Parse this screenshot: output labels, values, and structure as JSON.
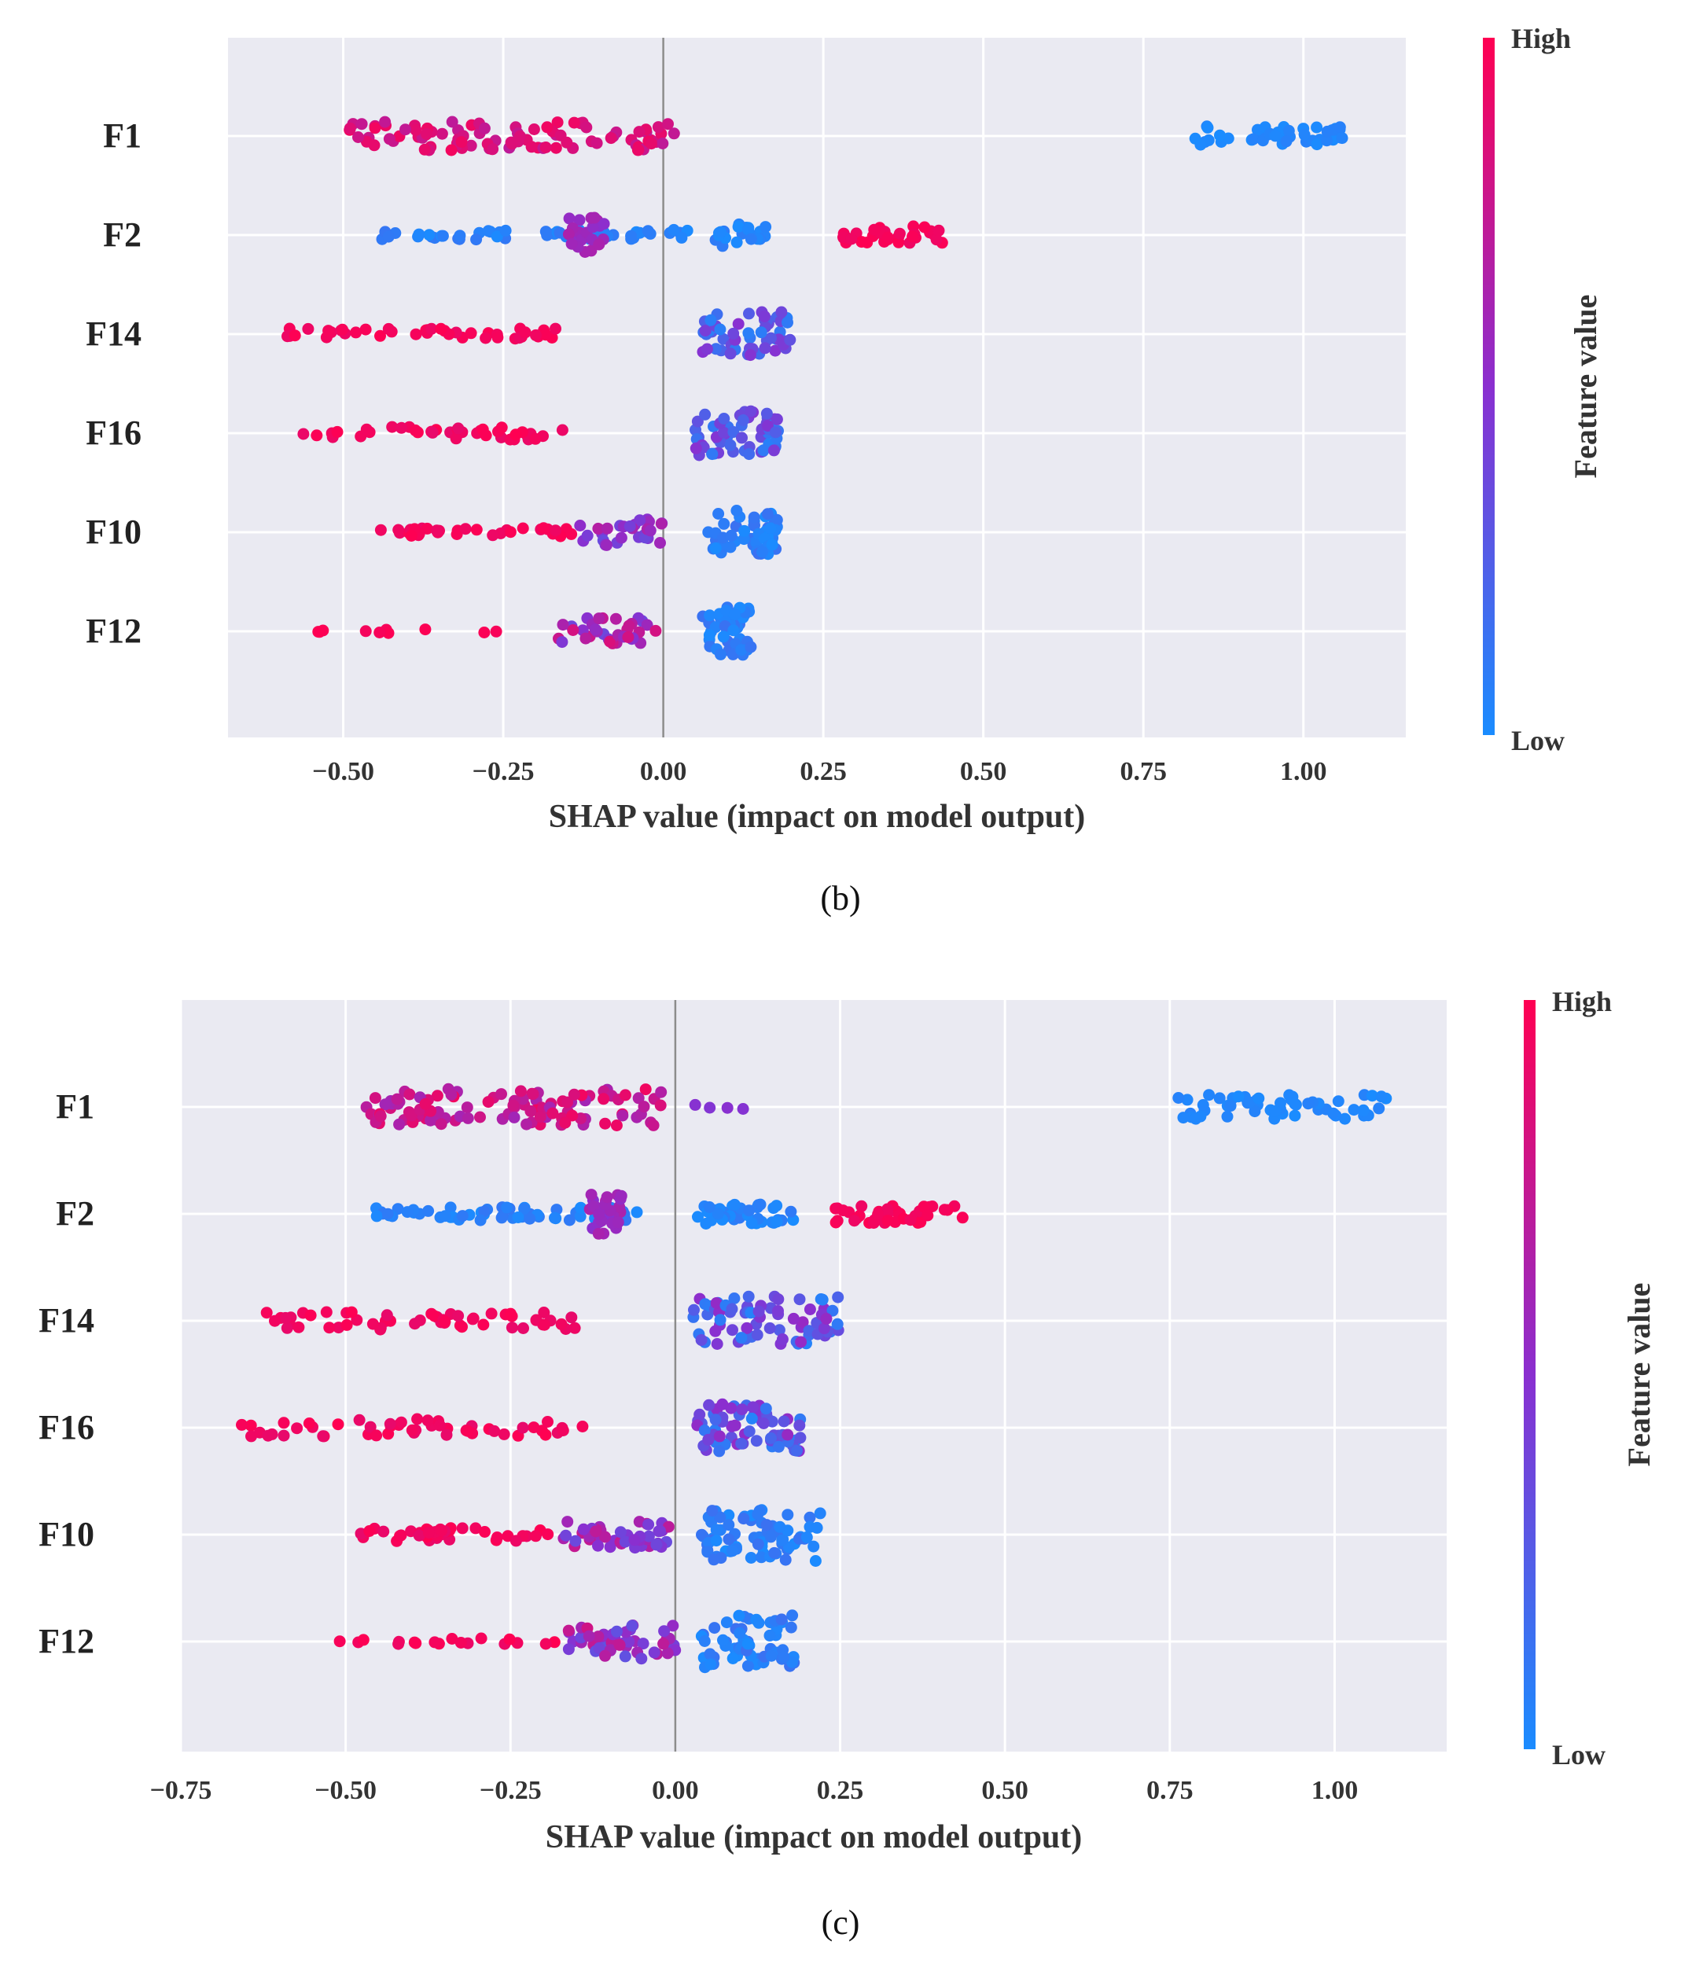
{
  "figure": {
    "captions": [
      "(b)",
      "(c)"
    ]
  },
  "colors": {
    "low": "#1a8cff",
    "mid": "#8a2fd0",
    "high": "#ff0052",
    "panel_bg": "#eaeaf2",
    "grid": "#ffffff",
    "zero_line": "#8c8c8c"
  },
  "chart_data": [
    {
      "type": "scatter",
      "subtype": "shap-beeswarm",
      "caption": "(b)",
      "xlabel": "SHAP value (impact on model output)",
      "xlim": [
        -0.68,
        1.16
      ],
      "xticks": [
        -0.5,
        -0.25,
        0.0,
        0.25,
        0.5,
        0.75,
        1.0
      ],
      "xtick_labels": [
        "−0.50",
        "−0.25",
        "0.00",
        "0.25",
        "0.50",
        "0.75",
        "1.00"
      ],
      "colorbar": {
        "label": "Feature value",
        "high_label": "High",
        "low_label": "Low"
      },
      "grid": true,
      "features": [
        {
          "name": "F1",
          "clusters": [
            {
              "from": -0.49,
              "to": 0.02,
              "n": 95,
              "color_from": 0.72,
              "color_to": 0.95,
              "spread": 0.65
            },
            {
              "from": 0.82,
              "to": 1.07,
              "n": 45,
              "color_from": 0.0,
              "color_to": 0.06,
              "spread": 0.45
            }
          ]
        },
        {
          "name": "F2",
          "clusters": [
            {
              "from": -0.44,
              "to": 0.04,
              "n": 55,
              "color_from": 0.0,
              "color_to": 0.12,
              "spread": 0.25
            },
            {
              "from": -0.15,
              "to": -0.09,
              "n": 22,
              "color_from": 0.5,
              "color_to": 0.65,
              "spread": 0.8
            },
            {
              "from": 0.08,
              "to": 0.16,
              "n": 22,
              "color_from": 0.0,
              "color_to": 0.1,
              "spread": 0.5
            },
            {
              "from": 0.28,
              "to": 0.44,
              "n": 32,
              "color_from": 0.93,
              "color_to": 1.0,
              "spread": 0.4
            }
          ]
        },
        {
          "name": "F14",
          "clusters": [
            {
              "from": -0.59,
              "to": -0.16,
              "n": 42,
              "color_from": 0.92,
              "color_to": 1.0,
              "spread": 0.25
            },
            {
              "from": 0.06,
              "to": 0.2,
              "n": 55,
              "color_from": 0.05,
              "color_to": 0.5,
              "spread": 1.0
            }
          ]
        },
        {
          "name": "F16",
          "clusters": [
            {
              "from": -0.57,
              "to": -0.15,
              "n": 40,
              "color_from": 0.9,
              "color_to": 1.0,
              "spread": 0.3
            },
            {
              "from": 0.05,
              "to": 0.18,
              "n": 60,
              "color_from": 0.05,
              "color_to": 0.5,
              "spread": 1.0
            }
          ]
        },
        {
          "name": "F10",
          "clusters": [
            {
              "from": -0.45,
              "to": -0.12,
              "n": 32,
              "color_from": 0.92,
              "color_to": 1.0,
              "spread": 0.2
            },
            {
              "from": -0.13,
              "to": 0.0,
              "n": 28,
              "color_from": 0.35,
              "color_to": 0.7,
              "spread": 0.6
            },
            {
              "from": 0.07,
              "to": 0.18,
              "n": 55,
              "color_from": 0.0,
              "color_to": 0.15,
              "spread": 1.0
            }
          ]
        },
        {
          "name": "F12",
          "clusters": [
            {
              "from": -0.57,
              "to": -0.25,
              "n": 10,
              "color_from": 0.95,
              "color_to": 1.0,
              "spread": 0.1
            },
            {
              "from": -0.17,
              "to": -0.01,
              "n": 35,
              "color_from": 0.35,
              "color_to": 0.85,
              "spread": 0.6
            },
            {
              "from": 0.06,
              "to": 0.14,
              "n": 45,
              "color_from": 0.0,
              "color_to": 0.15,
              "spread": 1.1
            }
          ]
        }
      ]
    },
    {
      "type": "scatter",
      "subtype": "shap-beeswarm",
      "caption": "(c)",
      "xlabel": "SHAP value (impact on model output)",
      "xlim": [
        -0.75,
        1.17
      ],
      "xticks": [
        -0.75,
        -0.5,
        -0.25,
        0.0,
        0.25,
        0.5,
        0.75,
        1.0
      ],
      "xtick_labels": [
        "−0.75",
        "−0.50",
        "−0.25",
        "0.00",
        "0.25",
        "0.50",
        "0.75",
        "1.00"
      ],
      "colorbar": {
        "label": "Feature value",
        "high_label": "High",
        "low_label": "Low"
      },
      "grid": true,
      "features": [
        {
          "name": "F1",
          "clusters": [
            {
              "from": -0.47,
              "to": -0.02,
              "n": 110,
              "color_from": 0.6,
              "color_to": 0.95,
              "spread": 0.85
            },
            {
              "from": 0.01,
              "to": 0.12,
              "n": 4,
              "color_from": 0.4,
              "color_to": 0.5,
              "spread": 0.1
            },
            {
              "from": 0.75,
              "to": 1.08,
              "n": 55,
              "color_from": 0.0,
              "color_to": 0.06,
              "spread": 0.55
            }
          ]
        },
        {
          "name": "F2",
          "clusters": [
            {
              "from": -0.47,
              "to": -0.05,
              "n": 60,
              "color_from": 0.0,
              "color_to": 0.12,
              "spread": 0.3
            },
            {
              "from": -0.13,
              "to": -0.08,
              "n": 26,
              "color_from": 0.5,
              "color_to": 0.65,
              "spread": 1.0
            },
            {
              "from": 0.03,
              "to": 0.18,
              "n": 40,
              "color_from": 0.0,
              "color_to": 0.1,
              "spread": 0.45
            },
            {
              "from": 0.24,
              "to": 0.44,
              "n": 40,
              "color_from": 0.93,
              "color_to": 1.0,
              "spread": 0.45
            }
          ]
        },
        {
          "name": "F14",
          "clusters": [
            {
              "from": -0.62,
              "to": -0.14,
              "n": 55,
              "color_from": 0.9,
              "color_to": 1.0,
              "spread": 0.4
            },
            {
              "from": 0.02,
              "to": 0.25,
              "n": 75,
              "color_from": 0.05,
              "color_to": 0.55,
              "spread": 1.1
            }
          ]
        },
        {
          "name": "F16",
          "clusters": [
            {
              "from": -0.67,
              "to": -0.14,
              "n": 50,
              "color_from": 0.9,
              "color_to": 1.0,
              "spread": 0.4
            },
            {
              "from": 0.03,
              "to": 0.2,
              "n": 70,
              "color_from": 0.05,
              "color_to": 0.55,
              "spread": 1.1
            }
          ]
        },
        {
          "name": "F10",
          "clusters": [
            {
              "from": -0.48,
              "to": -0.16,
              "n": 40,
              "color_from": 0.9,
              "color_to": 1.0,
              "spread": 0.3
            },
            {
              "from": -0.17,
              "to": -0.01,
              "n": 45,
              "color_from": 0.35,
              "color_to": 0.75,
              "spread": 0.6
            },
            {
              "from": 0.04,
              "to": 0.22,
              "n": 75,
              "color_from": 0.0,
              "color_to": 0.15,
              "spread": 1.2
            }
          ]
        },
        {
          "name": "F12",
          "clusters": [
            {
              "from": -0.54,
              "to": -0.18,
              "n": 18,
              "color_from": 0.92,
              "color_to": 1.0,
              "spread": 0.15
            },
            {
              "from": -0.17,
              "to": 0.0,
              "n": 50,
              "color_from": 0.3,
              "color_to": 0.8,
              "spread": 0.8
            },
            {
              "from": 0.04,
              "to": 0.18,
              "n": 60,
              "color_from": 0.0,
              "color_to": 0.15,
              "spread": 1.2
            }
          ]
        }
      ]
    }
  ]
}
